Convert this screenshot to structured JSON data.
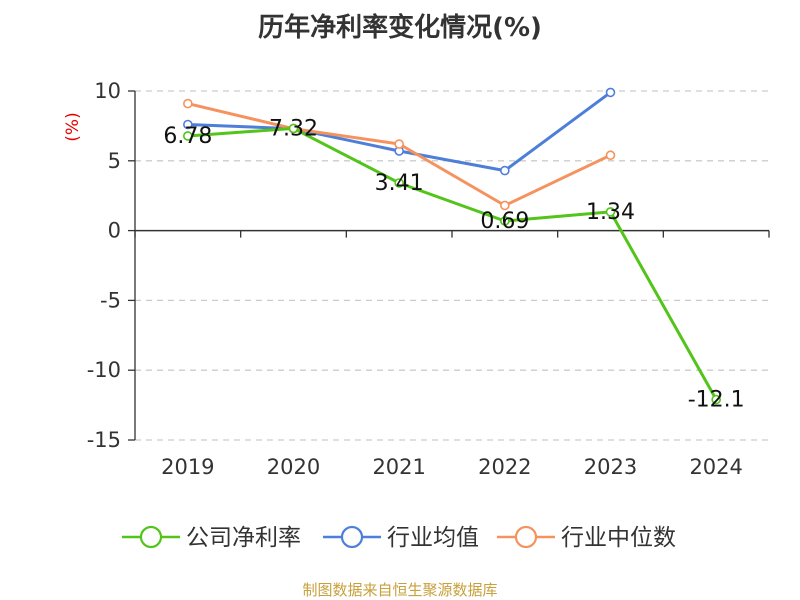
{
  "chart_data": {
    "type": "line",
    "title": "历年净利率变化情况(%)",
    "ylabel": "(%)",
    "ylim": [
      -15,
      10
    ],
    "y_ticks": [
      10,
      5,
      0,
      -5,
      -10,
      -15
    ],
    "grid": true,
    "legend_position": "bottom",
    "categories": [
      "2019",
      "2020",
      "2021",
      "2022",
      "2023",
      "2024"
    ],
    "series": [
      {
        "name": "公司净利率",
        "color": "#52c41a",
        "values": [
          6.78,
          7.32,
          3.41,
          0.69,
          1.34,
          -12.1
        ],
        "labels": [
          "6.78",
          "7.32",
          "3.41",
          "0.69",
          "1.34",
          "-12.1"
        ]
      },
      {
        "name": "行业均值",
        "color": "#4e7fd8",
        "values": [
          7.6,
          7.3,
          5.7,
          4.3,
          9.9,
          null
        ]
      },
      {
        "name": "行业中位数",
        "color": "#f5925e",
        "values": [
          9.1,
          7.3,
          6.2,
          1.8,
          5.4,
          null
        ]
      }
    ]
  },
  "colors": {
    "axis": "#333333",
    "grid": "#cccccc",
    "unit_label": "#e60000",
    "source": "#c8a03c"
  },
  "source_text": "制图数据来自恒生聚源数据库"
}
